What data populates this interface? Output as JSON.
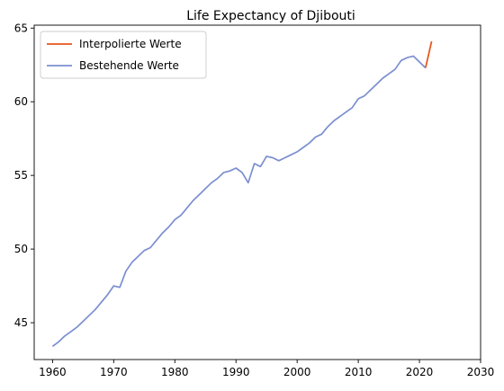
{
  "chart_data": {
    "type": "line",
    "title": "Life Expectancy of Djibouti",
    "xlabel": "",
    "ylabel": "",
    "xlim": [
      1957,
      2030
    ],
    "ylim": [
      42.5,
      65.2
    ],
    "xticks": [
      1960,
      1970,
      1980,
      1990,
      2000,
      2010,
      2020,
      2030
    ],
    "yticks": [
      45,
      50,
      55,
      60,
      65
    ],
    "grid": false,
    "legend": "top-left",
    "series": [
      {
        "name": "Interpolierte Werte",
        "color": "#e8541c",
        "x": [
          2021,
          2022
        ],
        "y": [
          62.3,
          64.1
        ]
      },
      {
        "name": "Bestehende Werte",
        "color": "#7b8fd0",
        "x": [
          1960,
          1961,
          1962,
          1963,
          1964,
          1965,
          1966,
          1967,
          1968,
          1969,
          1970,
          1971,
          1972,
          1973,
          1974,
          1975,
          1976,
          1977,
          1978,
          1979,
          1980,
          1981,
          1982,
          1983,
          1984,
          1985,
          1986,
          1987,
          1988,
          1989,
          1990,
          1991,
          1992,
          1993,
          1994,
          1995,
          1996,
          1997,
          1998,
          1999,
          2000,
          2001,
          2002,
          2003,
          2004,
          2005,
          2006,
          2007,
          2008,
          2009,
          2010,
          2011,
          2012,
          2013,
          2014,
          2015,
          2016,
          2017,
          2018,
          2019,
          2020,
          2021
        ],
        "y": [
          43.4,
          43.7,
          44.1,
          44.4,
          44.7,
          45.1,
          45.5,
          45.9,
          46.4,
          46.9,
          47.5,
          47.4,
          48.5,
          49.1,
          49.5,
          49.9,
          50.1,
          50.6,
          51.1,
          51.5,
          52.0,
          52.3,
          52.8,
          53.3,
          53.7,
          54.1,
          54.5,
          54.8,
          55.2,
          55.3,
          55.5,
          55.2,
          54.5,
          55.8,
          55.6,
          56.3,
          56.2,
          56.0,
          56.2,
          56.4,
          56.6,
          56.9,
          57.2,
          57.6,
          57.8,
          58.3,
          58.7,
          59.0,
          59.3,
          59.6,
          60.2,
          60.4,
          60.8,
          61.2,
          61.6,
          61.9,
          62.2,
          62.8,
          63.0,
          63.1,
          62.7,
          62.3
        ]
      }
    ]
  }
}
